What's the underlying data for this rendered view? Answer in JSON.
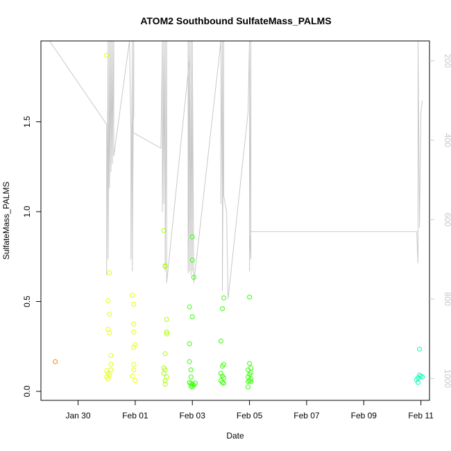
{
  "chart_data": {
    "type": "scatter",
    "title": "ATOM2 Southbound SulfateMass_PALMS",
    "xlabel": "Date",
    "ylabel": "SulfateMass_PALMS",
    "x_ticks": [
      "Jan 30",
      "Feb 01",
      "Feb 03",
      "Feb 05",
      "Feb 07",
      "Feb 09",
      "Feb 11"
    ],
    "y_ticks": [
      "0.0",
      "0.5",
      "1.0",
      "1.5"
    ],
    "y2_ticks": [
      "200",
      "400",
      "600",
      "800",
      "1000"
    ],
    "xlim_days_since_jan29": [
      -0.3,
      13.3
    ],
    "ylim": [
      -0.05,
      1.95
    ],
    "y2lim": [
      1055,
      150
    ],
    "secondary_axis_reversed": true,
    "grid": false,
    "colors": {
      "orange": "#ff7f00",
      "yellow": "#e6ff00",
      "yellow_green": "#aaff00",
      "green": "#33ff00",
      "teal": "#00ffb3",
      "altitude_line": "#c8c8c8",
      "axis": "#000000"
    },
    "points": [
      {
        "x": 0.2,
        "y": 0.165,
        "c": "#ff7f00"
      },
      {
        "x": 2.0,
        "y": 1.87,
        "c": "#e6ff00"
      },
      {
        "x": 2.1,
        "y": 0.66,
        "c": "#e6ff00"
      },
      {
        "x": 2.05,
        "y": 0.505,
        "c": "#e6ff00"
      },
      {
        "x": 2.1,
        "y": 0.43,
        "c": "#e6ff00"
      },
      {
        "x": 2.05,
        "y": 0.345,
        "c": "#e6ff00"
      },
      {
        "x": 2.1,
        "y": 0.325,
        "c": "#e6ff00"
      },
      {
        "x": 2.15,
        "y": 0.2,
        "c": "#e6ff00"
      },
      {
        "x": 2.15,
        "y": 0.15,
        "c": "#e6ff00"
      },
      {
        "x": 2.0,
        "y": 0.115,
        "c": "#e6ff00"
      },
      {
        "x": 2.05,
        "y": 0.1,
        "c": "#e6ff00"
      },
      {
        "x": 2.1,
        "y": 0.09,
        "c": "#e6ff00"
      },
      {
        "x": 2.0,
        "y": 0.08,
        "c": "#e6ff00"
      },
      {
        "x": 2.05,
        "y": 0.07,
        "c": "#e6ff00"
      },
      {
        "x": 2.15,
        "y": 0.12,
        "c": "#e6ff00"
      },
      {
        "x": 2.9,
        "y": 0.535,
        "c": "#e6ff00"
      },
      {
        "x": 2.95,
        "y": 0.485,
        "c": "#e6ff00"
      },
      {
        "x": 2.95,
        "y": 0.375,
        "c": "#e6ff00"
      },
      {
        "x": 2.95,
        "y": 0.33,
        "c": "#e6ff00"
      },
      {
        "x": 3.0,
        "y": 0.26,
        "c": "#e6ff00"
      },
      {
        "x": 2.95,
        "y": 0.245,
        "c": "#e6ff00"
      },
      {
        "x": 2.95,
        "y": 0.15,
        "c": "#e6ff00"
      },
      {
        "x": 2.95,
        "y": 0.12,
        "c": "#e6ff00"
      },
      {
        "x": 2.9,
        "y": 0.085,
        "c": "#e6ff00"
      },
      {
        "x": 3.0,
        "y": 0.06,
        "c": "#e6ff00"
      },
      {
        "x": 4.0,
        "y": 0.895,
        "c": "#aaff00"
      },
      {
        "x": 4.05,
        "y": 0.7,
        "c": "#aaff00"
      },
      {
        "x": 4.05,
        "y": 0.695,
        "c": "#aaff00"
      },
      {
        "x": 4.1,
        "y": 0.4,
        "c": "#aaff00"
      },
      {
        "x": 4.1,
        "y": 0.33,
        "c": "#aaff00"
      },
      {
        "x": 4.1,
        "y": 0.32,
        "c": "#aaff00"
      },
      {
        "x": 4.05,
        "y": 0.21,
        "c": "#aaff00"
      },
      {
        "x": 4.0,
        "y": 0.13,
        "c": "#aaff00"
      },
      {
        "x": 4.05,
        "y": 0.12,
        "c": "#aaff00"
      },
      {
        "x": 4.0,
        "y": 0.1,
        "c": "#aaff00"
      },
      {
        "x": 4.1,
        "y": 0.08,
        "c": "#aaff00"
      },
      {
        "x": 4.05,
        "y": 0.06,
        "c": "#aaff00"
      },
      {
        "x": 4.05,
        "y": 0.04,
        "c": "#aaff00"
      },
      {
        "x": 4.9,
        "y": 0.47,
        "c": "#33ff00"
      },
      {
        "x": 5.0,
        "y": 0.86,
        "c": "#33ff00"
      },
      {
        "x": 5.0,
        "y": 0.73,
        "c": "#33ff00"
      },
      {
        "x": 5.05,
        "y": 0.635,
        "c": "#33ff00"
      },
      {
        "x": 5.0,
        "y": 0.415,
        "c": "#33ff00"
      },
      {
        "x": 4.9,
        "y": 0.265,
        "c": "#33ff00"
      },
      {
        "x": 4.9,
        "y": 0.165,
        "c": "#33ff00"
      },
      {
        "x": 4.95,
        "y": 0.12,
        "c": "#33ff00"
      },
      {
        "x": 4.95,
        "y": 0.08,
        "c": "#33ff00"
      },
      {
        "x": 4.9,
        "y": 0.05,
        "c": "#33ff00"
      },
      {
        "x": 4.95,
        "y": 0.045,
        "c": "#33ff00"
      },
      {
        "x": 5.0,
        "y": 0.04,
        "c": "#33ff00"
      },
      {
        "x": 5.05,
        "y": 0.035,
        "c": "#33ff00"
      },
      {
        "x": 4.95,
        "y": 0.03,
        "c": "#33ff00"
      },
      {
        "x": 5.0,
        "y": 0.025,
        "c": "#33ff00"
      },
      {
        "x": 5.1,
        "y": 0.045,
        "c": "#33ff00"
      },
      {
        "x": 6.1,
        "y": 0.52,
        "c": "#33ff00"
      },
      {
        "x": 6.05,
        "y": 0.46,
        "c": "#33ff00"
      },
      {
        "x": 6.0,
        "y": 0.28,
        "c": "#33ff00"
      },
      {
        "x": 6.1,
        "y": 0.15,
        "c": "#33ff00"
      },
      {
        "x": 6.05,
        "y": 0.14,
        "c": "#33ff00"
      },
      {
        "x": 6.0,
        "y": 0.1,
        "c": "#33ff00"
      },
      {
        "x": 6.05,
        "y": 0.085,
        "c": "#33ff00"
      },
      {
        "x": 6.1,
        "y": 0.075,
        "c": "#33ff00"
      },
      {
        "x": 6.0,
        "y": 0.06,
        "c": "#33ff00"
      },
      {
        "x": 6.05,
        "y": 0.05,
        "c": "#33ff00"
      },
      {
        "x": 6.1,
        "y": 0.045,
        "c": "#33ff00"
      },
      {
        "x": 7.0,
        "y": 0.525,
        "c": "#33ff00"
      },
      {
        "x": 7.0,
        "y": 0.155,
        "c": "#33ff00"
      },
      {
        "x": 7.05,
        "y": 0.13,
        "c": "#33ff00"
      },
      {
        "x": 6.95,
        "y": 0.12,
        "c": "#33ff00"
      },
      {
        "x": 7.05,
        "y": 0.105,
        "c": "#33ff00"
      },
      {
        "x": 7.0,
        "y": 0.095,
        "c": "#33ff00"
      },
      {
        "x": 6.95,
        "y": 0.08,
        "c": "#33ff00"
      },
      {
        "x": 7.05,
        "y": 0.07,
        "c": "#33ff00"
      },
      {
        "x": 7.0,
        "y": 0.06,
        "c": "#33ff00"
      },
      {
        "x": 6.95,
        "y": 0.055,
        "c": "#33ff00"
      },
      {
        "x": 7.05,
        "y": 0.055,
        "c": "#33ff00"
      },
      {
        "x": 6.95,
        "y": 0.025,
        "c": "#33ff00"
      },
      {
        "x": 12.95,
        "y": 0.235,
        "c": "#00ffb3"
      },
      {
        "x": 12.95,
        "y": 0.09,
        "c": "#00ffb3"
      },
      {
        "x": 13.0,
        "y": 0.085,
        "c": "#00ffb3"
      },
      {
        "x": 13.05,
        "y": 0.08,
        "c": "#00ffb3"
      },
      {
        "x": 12.9,
        "y": 0.075,
        "c": "#00ffb3"
      },
      {
        "x": 12.85,
        "y": 0.065,
        "c": "#00ffb3"
      },
      {
        "x": 12.9,
        "y": 0.05,
        "c": "#00ffb3"
      }
    ],
    "altitude_series": {
      "name": "",
      "x": [
        0.0,
        2.0,
        2.0,
        2.05,
        2.05,
        2.1,
        2.1,
        2.15,
        2.15,
        2.2,
        2.2,
        2.25,
        2.25,
        2.8,
        2.85,
        2.85,
        2.9,
        2.9,
        2.95,
        2.95,
        2.9,
        3.9,
        3.95,
        3.95,
        4.0,
        4.0,
        4.05,
        4.05,
        4.1,
        4.1,
        4.9,
        4.85,
        4.85,
        4.9,
        4.9,
        4.95,
        4.95,
        5.0,
        5.0,
        5.05,
        6.0,
        6.0,
        6.05,
        6.05,
        6.1,
        6.1,
        6.2,
        6.25,
        6.95,
        7.0,
        7.0,
        7.05,
        7.05,
        7.0,
        7.0,
        12.85,
        12.9,
        12.9,
        12.95,
        13.0,
        13.05
      ],
      "y": [
        150,
        360,
        740,
        150,
        700,
        150,
        520,
        150,
        480,
        150,
        460,
        150,
        440,
        150,
        380,
        700,
        150,
        730,
        150,
        340,
        380,
        420,
        150,
        580,
        150,
        560,
        150,
        730,
        150,
        760,
        195,
        735,
        150,
        730,
        150,
        740,
        150,
        730,
        150,
        760,
        150,
        560,
        150,
        780,
        150,
        540,
        580,
        800,
        330,
        150,
        730,
        150,
        700,
        620,
        630,
        630,
        710,
        150,
        620,
        330,
        300
      ]
    }
  }
}
